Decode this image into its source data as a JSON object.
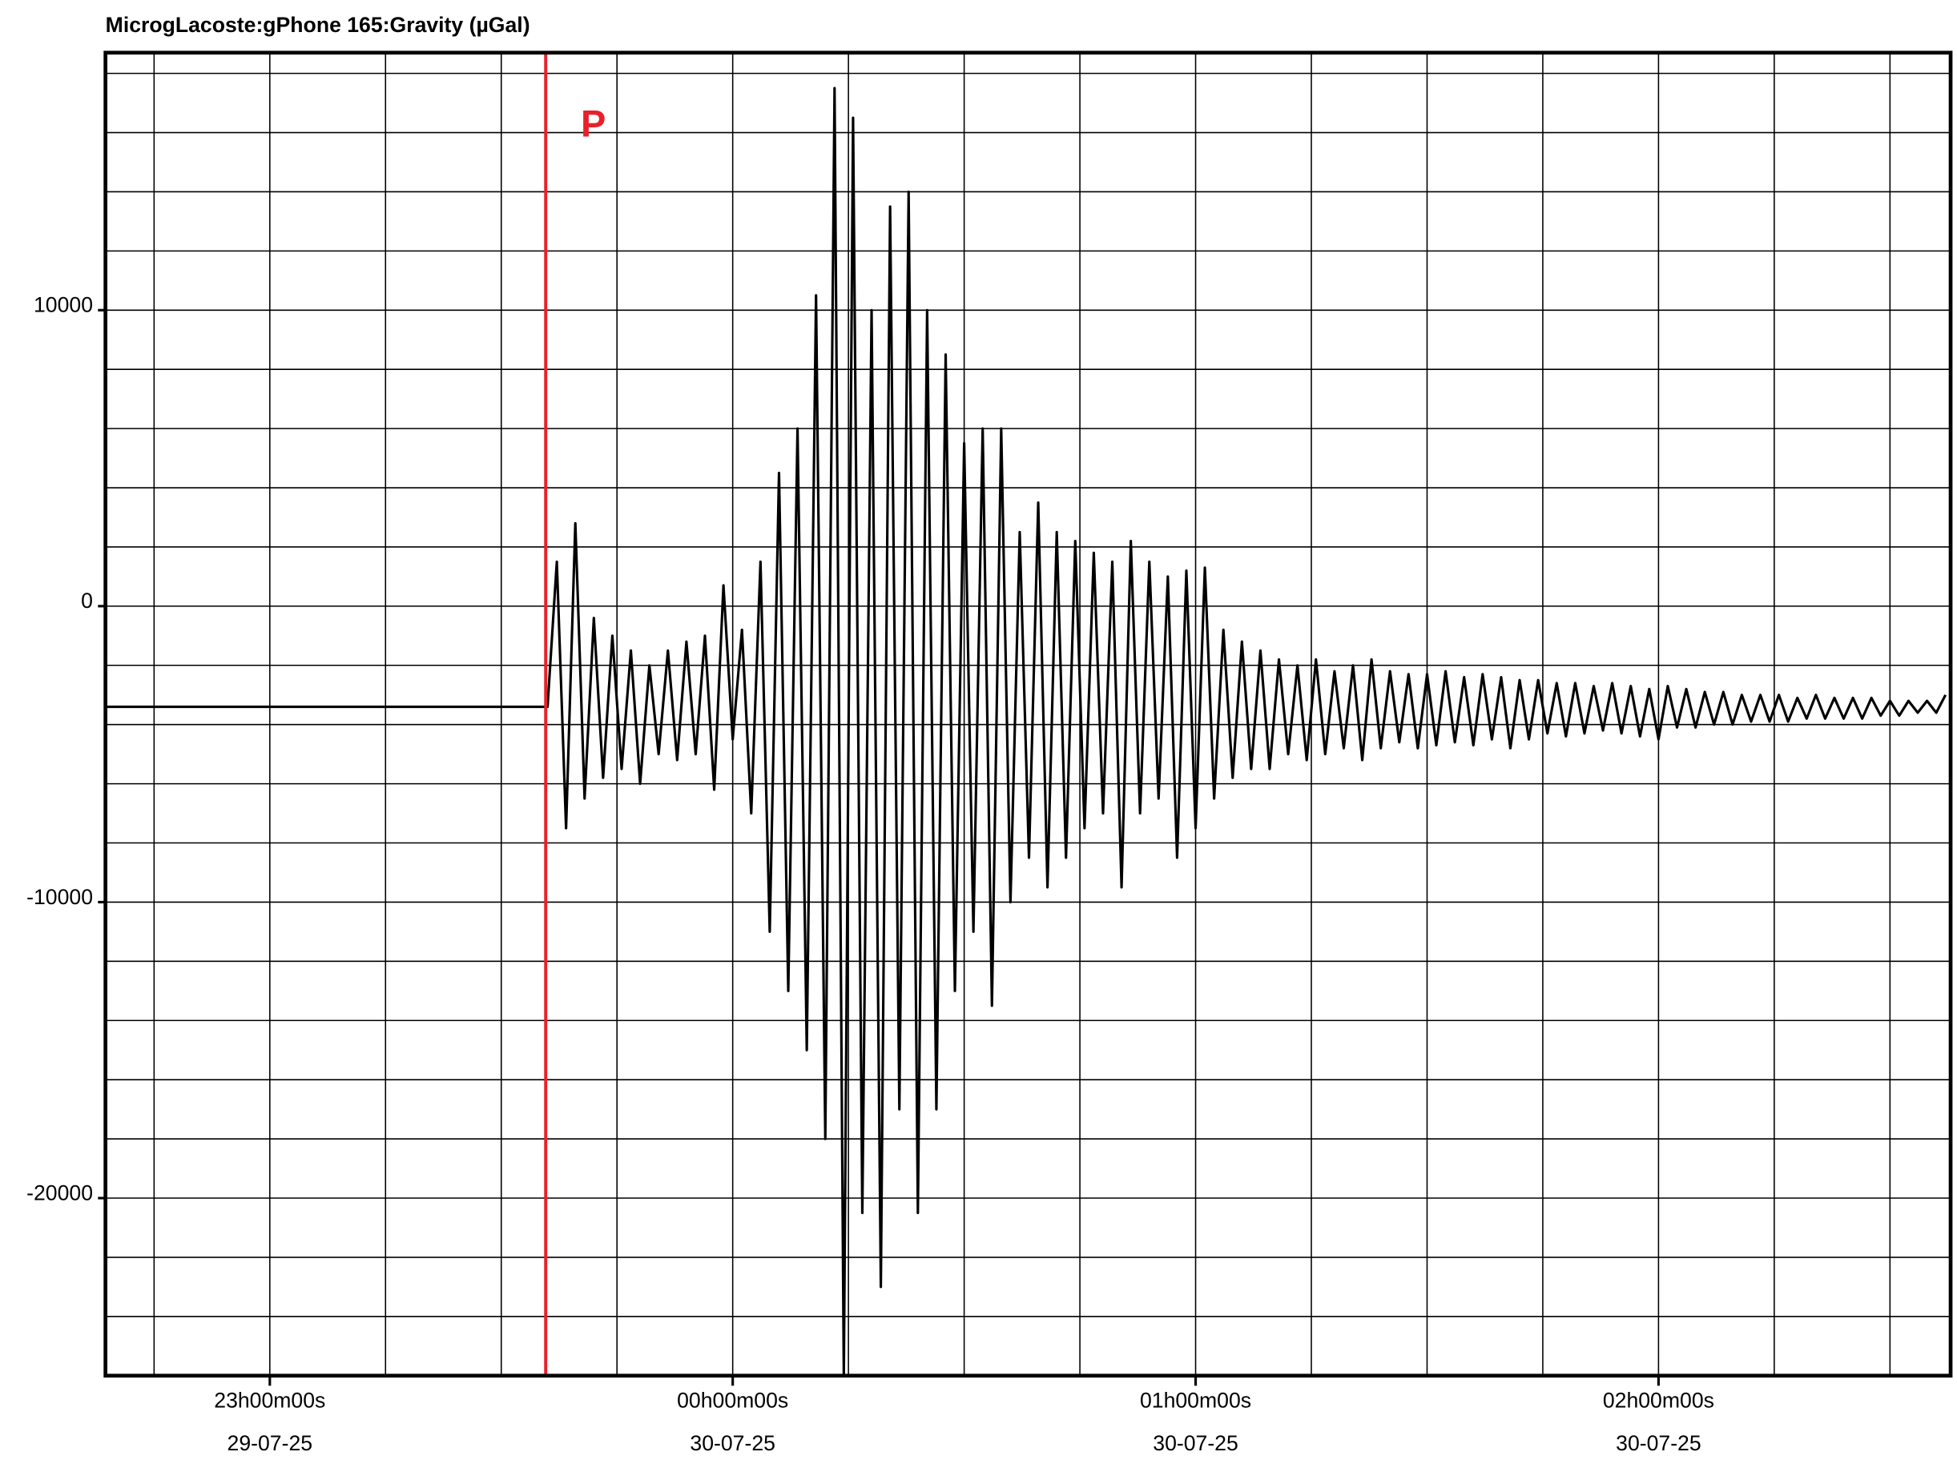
{
  "chart_data": {
    "type": "line",
    "title": "MicrogLacoste:gPhone 165:Gravity (µGal)",
    "x": [
      -1.355,
      -0.41,
      -0.4,
      -0.38,
      -0.36,
      -0.34,
      -0.32,
      -0.3,
      -0.28,
      -0.26,
      -0.24,
      -0.22,
      -0.2,
      -0.18,
      -0.16,
      -0.14,
      -0.12,
      -0.1,
      -0.08,
      -0.06,
      -0.04,
      -0.02,
      0.0,
      0.02,
      0.04,
      0.06,
      0.08,
      0.1,
      0.12,
      0.14,
      0.16,
      0.18,
      0.2,
      0.22,
      0.24,
      0.26,
      0.28,
      0.3,
      0.32,
      0.34,
      0.36,
      0.38,
      0.4,
      0.42,
      0.44,
      0.46,
      0.48,
      0.5,
      0.52,
      0.54,
      0.56,
      0.58,
      0.6,
      0.62,
      0.64,
      0.66,
      0.68,
      0.7,
      0.72,
      0.74,
      0.76,
      0.78,
      0.8,
      0.82,
      0.84,
      0.86,
      0.88,
      0.9,
      0.92,
      0.94,
      0.96,
      0.98,
      1.0,
      1.02,
      1.04,
      1.06,
      1.08,
      1.1,
      1.12,
      1.14,
      1.16,
      1.18,
      1.2,
      1.22,
      1.24,
      1.26,
      1.28,
      1.3,
      1.32,
      1.34,
      1.36,
      1.38,
      1.4,
      1.42,
      1.44,
      1.46,
      1.48,
      1.5,
      1.52,
      1.54,
      1.56,
      1.58,
      1.6,
      1.62,
      1.64,
      1.66,
      1.68,
      1.7,
      1.72,
      1.74,
      1.76,
      1.78,
      1.8,
      1.82,
      1.84,
      1.86,
      1.88,
      1.9,
      1.92,
      1.94,
      1.96,
      1.98,
      2.0,
      2.02,
      2.04,
      2.06,
      2.08,
      2.1,
      2.12,
      2.14,
      2.16,
      2.18,
      2.2,
      2.22,
      2.24,
      2.26,
      2.28,
      2.3,
      2.32,
      2.34,
      2.36,
      2.38,
      2.4,
      2.42,
      2.44,
      2.46,
      2.48,
      2.5,
      2.52,
      2.54,
      2.56,
      2.58,
      2.6,
      2.62
    ],
    "series": [
      {
        "color": "#000000",
        "values": [
          -3400,
          -3400,
          -3400,
          1500,
          -7500,
          2800,
          -6500,
          -400,
          -5800,
          -1000,
          -5500,
          -1500,
          -6000,
          -2000,
          -5000,
          -1500,
          -5200,
          -1200,
          -5000,
          -1000,
          -6200,
          700,
          -4500,
          -800,
          -7000,
          1500,
          -11000,
          4500,
          -13000,
          6000,
          -15000,
          10500,
          -18000,
          17500,
          -26000,
          16500,
          -20500,
          10000,
          -23000,
          13500,
          -17000,
          14000,
          -20500,
          10000,
          -17000,
          8500,
          -13000,
          5500,
          -11000,
          6000,
          -13500,
          6000,
          -10000,
          2500,
          -8500,
          3500,
          -9500,
          2500,
          -8500,
          2200,
          -7500,
          1800,
          -7000,
          1500,
          -9500,
          2200,
          -7000,
          1500,
          -6500,
          1000,
          -8500,
          1200,
          -7500,
          1300,
          -6500,
          -800,
          -5800,
          -1200,
          -5500,
          -1500,
          -5500,
          -1800,
          -5000,
          -2000,
          -5200,
          -1800,
          -5000,
          -2200,
          -4800,
          -2000,
          -5200,
          -1800,
          -4800,
          -2200,
          -4600,
          -2300,
          -4800,
          -2300,
          -4700,
          -2200,
          -4600,
          -2400,
          -4700,
          -2300,
          -4500,
          -2400,
          -4800,
          -2500,
          -4500,
          -2500,
          -4300,
          -2600,
          -4400,
          -2600,
          -4300,
          -2700,
          -4200,
          -2600,
          -4300,
          -2700,
          -4400,
          -2800,
          -4500,
          -2700,
          -4100,
          -2800,
          -4100,
          -2900,
          -4000,
          -2900,
          -4000,
          -3000,
          -3900,
          -3000,
          -3900,
          -3000,
          -3900,
          -3100,
          -3800,
          -3000,
          -3800,
          -3100,
          -3800,
          -3100,
          -3800,
          -3100,
          -3700,
          -3200,
          -3700,
          -3200,
          -3600,
          -3200,
          -3600,
          -3000
        ]
      }
    ],
    "xlim": [
      -1.355,
      2.631
    ],
    "ylim": [
      -26000,
      18700
    ],
    "xticks": [
      {
        "value": -1,
        "label": "23h00m00s",
        "date": "29-07-25"
      },
      {
        "value": 0,
        "label": "00h00m00s",
        "date": "30-07-25"
      },
      {
        "value": 1,
        "label": "01h00m00s",
        "date": "30-07-25"
      },
      {
        "value": 2,
        "label": "02h00m00s",
        "date": "30-07-25"
      }
    ],
    "yticks": [
      -20000,
      -10000,
      0,
      10000
    ],
    "xgrid": [
      -1.25,
      -1,
      -0.75,
      -0.5,
      -0.25,
      0,
      0.25,
      0.5,
      0.75,
      1,
      1.25,
      1.5,
      1.75,
      2,
      2.25,
      2.5
    ],
    "ygrid": [
      -24000,
      -22000,
      -20000,
      -18000,
      -16000,
      -14000,
      -12000,
      -10000,
      -8000,
      -6000,
      -4000,
      -2000,
      0,
      2000,
      4000,
      6000,
      8000,
      10000,
      12000,
      14000,
      16000,
      18000
    ],
    "annotations": [
      {
        "text": "P",
        "x": -0.404,
        "color": "#e8202a"
      }
    ]
  }
}
